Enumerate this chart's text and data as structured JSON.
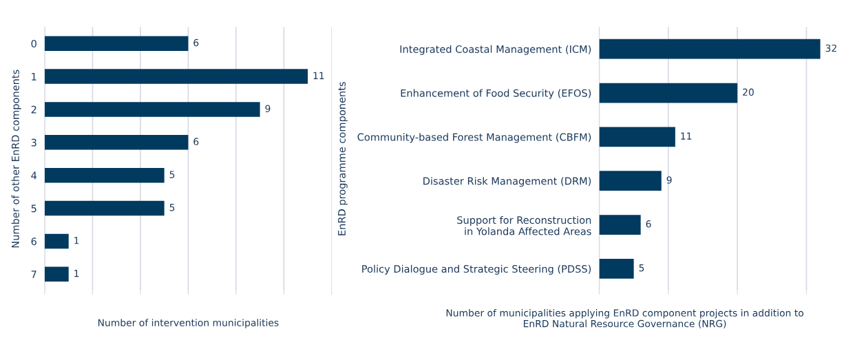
{
  "chart_data": [
    {
      "type": "bar",
      "orientation": "horizontal",
      "ylabel": "Number of other EnRD components",
      "xlabel": "Number of intervention municipalities",
      "categories": [
        "0",
        "1",
        "2",
        "3",
        "4",
        "5",
        "6",
        "7"
      ],
      "values": [
        6,
        11,
        9,
        6,
        5,
        5,
        1,
        1
      ],
      "color": "#003a5f",
      "xticks": [
        {
          "value": 0,
          "label": null
        },
        {
          "value": 2,
          "label": null
        },
        {
          "value": 4,
          "label": null
        },
        {
          "value": 6,
          "label": null
        },
        {
          "value": 8,
          "label": null
        },
        {
          "value": 10,
          "label": null
        },
        {
          "value": 12,
          "label": null
        }
      ],
      "grid": "x",
      "data_labels": true,
      "tick_labels": "y"
    },
    {
      "type": "bar",
      "orientation": "horizontal",
      "ylabel": "EnRD programme components",
      "xlabel": "Number of municipalities applying EnRD component projects in addition to\nEnRD Natural Resource Governance (NRG)",
      "categories": [
        "Integrated Coastal Management (ICM)",
        "Enhancement of Food Security (EFOS)",
        "Community-based Forest Management (CBFM)",
        "Disaster Risk Management (DRM)",
        "Support for Reconstruction\nin Yolanda Affected Areas",
        "Policy Dialogue and Strategic Steering (PDSS)"
      ],
      "values": [
        32,
        20,
        11,
        9,
        6,
        5
      ],
      "color": "#003a5f",
      "xticks": [
        {
          "value": 0,
          "label": null
        },
        {
          "value": 10,
          "label": null
        },
        {
          "value": 20,
          "label": null
        },
        {
          "value": 30,
          "label": null
        }
      ],
      "grid": "x",
      "data_labels": true,
      "tick_labels": "y"
    }
  ]
}
